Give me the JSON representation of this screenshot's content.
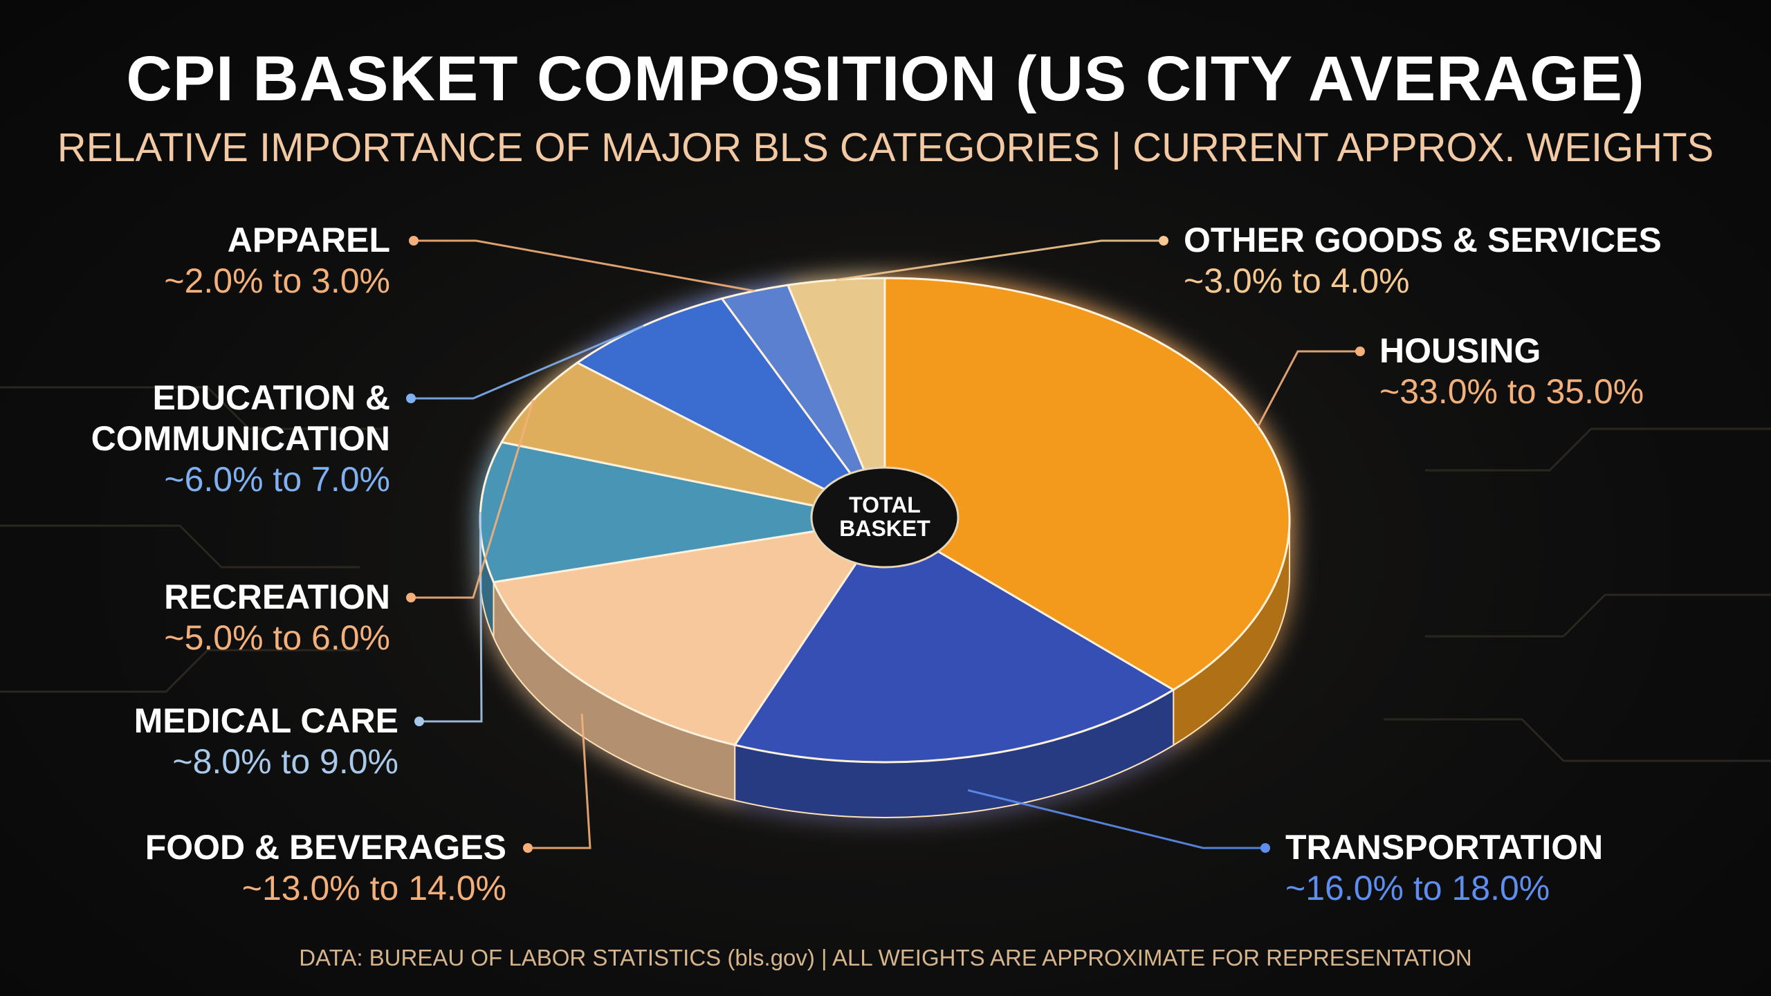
{
  "chart_data": {
    "type": "pie",
    "title": "CPI BASKET COMPOSITION (US CITY AVERAGE)",
    "subtitle": "RELATIVE IMPORTANCE OF MAJOR BLS CATEGORIES | CURRENT APPROX. WEIGHTS",
    "source": "DATA: BUREAU OF LABOR STATISTICS (bls.gov) | ALL WEIGHTS ARE APPROXIMATE FOR REPRESENTATION",
    "center_label": "TOTAL BASKET",
    "categories": [
      "HOUSING",
      "TRANSPORTATION",
      "FOOD & BEVERAGES",
      "MEDICAL CARE",
      "RECREATION",
      "EDUCATION & COMMUNICATION",
      "APPAREL",
      "OTHER GOODS & SERVICES"
    ],
    "low": [
      33.0,
      16.0,
      13.0,
      8.0,
      5.0,
      6.0,
      2.0,
      3.0
    ],
    "high": [
      35.0,
      18.0,
      14.0,
      9.0,
      6.0,
      7.0,
      3.0,
      4.0
    ],
    "value_labels": [
      "~33.0% to 35.0%",
      "~16.0% to 18.0%",
      "~13.0% to 14.0%",
      "~8.0% to 9.0%",
      "~5.0% to 6.0%",
      "~6.0% to 7.0%",
      "~2.0% to 3.0%",
      "~3.0% to 4.0%"
    ],
    "colors": [
      "#f39a1e",
      "#3450b4",
      "#f7c89c",
      "#4a95b6",
      "#deae5c",
      "#3a6dd0",
      "#5b80d0",
      "#e9c88c"
    ]
  }
}
